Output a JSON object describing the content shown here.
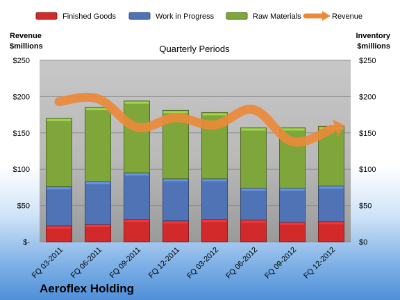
{
  "chart_data": {
    "type": "bar",
    "subtype": "stacked-bar-with-line",
    "title": "Quarterly Periods",
    "company": "Aeroflex Holding",
    "y_left_label": [
      "Revenue",
      "$millions"
    ],
    "y_right_label": [
      "Inventory",
      "$millions"
    ],
    "ylim": [
      0,
      250
    ],
    "y_ticks_left": [
      "$-",
      "$50",
      "$100",
      "$150",
      "$200",
      "$250"
    ],
    "y_ticks_right": [
      "$0",
      "$50",
      "$100",
      "$150",
      "$200",
      "$250"
    ],
    "y_tick_values": [
      0,
      50,
      100,
      150,
      200,
      250
    ],
    "categories": [
      "FQ 03-2011",
      "FQ 06-2011",
      "FQ 09-2011",
      "FQ 12-2011",
      "FQ 03-2012",
      "FQ 06-2012",
      "FQ 09-2012",
      "FQ 12-2012"
    ],
    "series": [
      {
        "name": "Finished Goods",
        "kind": "bar",
        "color": "#d22a2a",
        "values": [
          22,
          24,
          31,
          29,
          31,
          30,
          27,
          28
        ]
      },
      {
        "name": "Work in Progress",
        "kind": "bar",
        "color": "#4f73b5",
        "values": [
          54,
          59,
          64,
          58,
          56,
          44,
          47,
          49
        ]
      },
      {
        "name": "Raw Materials",
        "kind": "bar",
        "color": "#7ea63b",
        "values": [
          94,
          102,
          99,
          94,
          91,
          83,
          83,
          82
        ]
      },
      {
        "name": "Revenue",
        "kind": "line",
        "color": "#ea8a3a",
        "values": [
          193,
          197,
          158,
          171,
          161,
          182,
          138,
          155
        ]
      }
    ],
    "legend_position": "top",
    "grid": true
  }
}
